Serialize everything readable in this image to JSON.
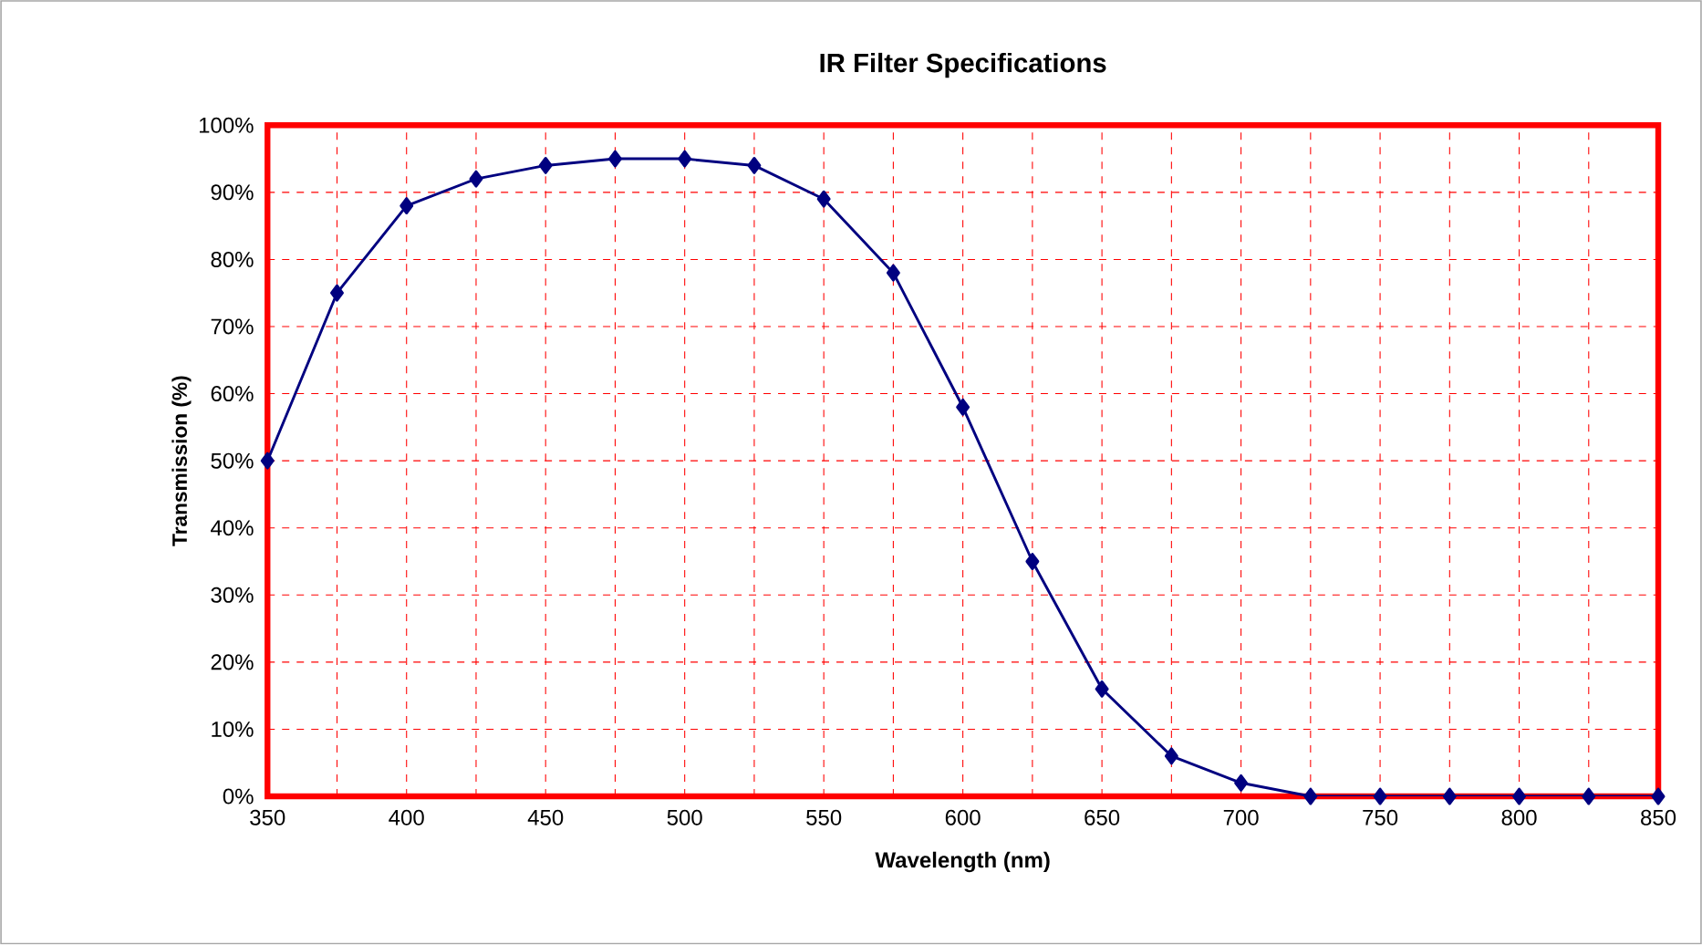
{
  "chart_data": {
    "type": "line",
    "title": "IR Filter Specifications",
    "xlabel": "Wavelength (nm)",
    "ylabel": "Transmission (%)",
    "x": [
      350,
      375,
      400,
      425,
      450,
      475,
      500,
      525,
      550,
      575,
      600,
      625,
      650,
      675,
      700,
      725,
      750,
      775,
      800,
      825,
      850
    ],
    "series": [
      {
        "color": "#000080",
        "values": [
          50,
          75,
          88,
          92,
          94,
          95,
          95,
          94,
          89,
          78,
          58,
          35,
          16,
          6,
          2,
          0,
          0,
          0,
          0,
          0,
          0
        ]
      }
    ],
    "xlim": [
      350,
      850
    ],
    "xticks": [
      350,
      400,
      450,
      500,
      550,
      600,
      650,
      700,
      750,
      800,
      850
    ],
    "ylim": [
      0,
      100
    ],
    "yticks": [
      {
        "value": 0,
        "label": "0%"
      },
      {
        "value": 10,
        "label": "10%"
      },
      {
        "value": 20,
        "label": "20%"
      },
      {
        "value": 30,
        "label": "30%"
      },
      {
        "value": 40,
        "label": "40%"
      },
      {
        "value": 50,
        "label": "50%"
      },
      {
        "value": 60,
        "label": "60%"
      },
      {
        "value": 70,
        "label": "70%"
      },
      {
        "value": 80,
        "label": "80%"
      },
      {
        "value": 90,
        "label": "90%"
      },
      {
        "value": 100,
        "label": "100%"
      }
    ],
    "grid": true,
    "marker": "diamond",
    "line_style": "solid"
  }
}
